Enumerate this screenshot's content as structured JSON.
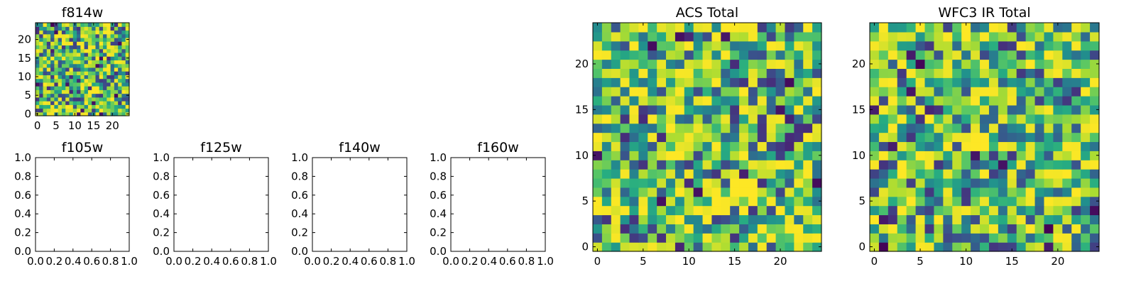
{
  "chart_data": [
    {
      "type": "heatmap",
      "title": "f814w",
      "grid_size": 25,
      "seed": 11,
      "xlim": [
        -0.5,
        24.5
      ],
      "ylim": [
        -0.5,
        24.5
      ],
      "x_ticks": [
        0,
        5,
        10,
        15,
        20
      ],
      "y_ticks": [
        0,
        5,
        10,
        15,
        20
      ],
      "colormap": "viridis",
      "bright_block": {
        "x": [
          15,
          16
        ],
        "y": [
          6,
          7
        ]
      }
    },
    {
      "type": "heatmap",
      "title": "f105w",
      "empty": true,
      "xlim": [
        0,
        1
      ],
      "ylim": [
        0,
        1
      ],
      "x_ticks": [
        "0.0",
        "0.2",
        "0.4",
        "0.6",
        "0.8",
        "1.0"
      ],
      "y_ticks": [
        "0.0",
        "0.2",
        "0.4",
        "0.6",
        "0.8",
        "1.0"
      ]
    },
    {
      "type": "heatmap",
      "title": "f125w",
      "empty": true,
      "xlim": [
        0,
        1
      ],
      "ylim": [
        0,
        1
      ],
      "x_ticks": [
        "0.0",
        "0.2",
        "0.4",
        "0.6",
        "0.8",
        "1.0"
      ],
      "y_ticks": [
        "0.0",
        "0.2",
        "0.4",
        "0.6",
        "0.8",
        "1.0"
      ]
    },
    {
      "type": "heatmap",
      "title": "f140w",
      "empty": true,
      "xlim": [
        0,
        1
      ],
      "ylim": [
        0,
        1
      ],
      "x_ticks": [
        "0.0",
        "0.2",
        "0.4",
        "0.6",
        "0.8",
        "1.0"
      ],
      "y_ticks": [
        "0.0",
        "0.2",
        "0.4",
        "0.6",
        "0.8",
        "1.0"
      ]
    },
    {
      "type": "heatmap",
      "title": "f160w",
      "empty": true,
      "xlim": [
        0,
        1
      ],
      "ylim": [
        0,
        1
      ],
      "x_ticks": [
        "0.0",
        "0.2",
        "0.4",
        "0.6",
        "0.8",
        "1.0"
      ],
      "y_ticks": [
        "0.0",
        "0.2",
        "0.4",
        "0.6",
        "0.8",
        "1.0"
      ]
    },
    {
      "type": "heatmap",
      "title": "ACS Total",
      "grid_size": 25,
      "seed": 23,
      "xlim": [
        -0.5,
        24.5
      ],
      "ylim": [
        -0.5,
        24.5
      ],
      "x_ticks": [
        0,
        5,
        10,
        15,
        20
      ],
      "y_ticks": [
        0,
        5,
        10,
        15,
        20
      ],
      "colormap": "viridis",
      "bright_block": {
        "x": [
          15,
          16,
          17
        ],
        "y": [
          6,
          7
        ]
      }
    },
    {
      "type": "heatmap",
      "title": "WFC3 IR Total",
      "grid_size": 25,
      "seed": 37,
      "xlim": [
        -0.5,
        24.5
      ],
      "ylim": [
        -0.5,
        24.5
      ],
      "x_ticks": [
        0,
        5,
        10,
        15,
        20
      ],
      "y_ticks": [
        0,
        5,
        10,
        15,
        20
      ],
      "colormap": "viridis",
      "bright_block": {
        "x": [
          11,
          12
        ],
        "y": [
          11,
          12
        ]
      }
    }
  ]
}
